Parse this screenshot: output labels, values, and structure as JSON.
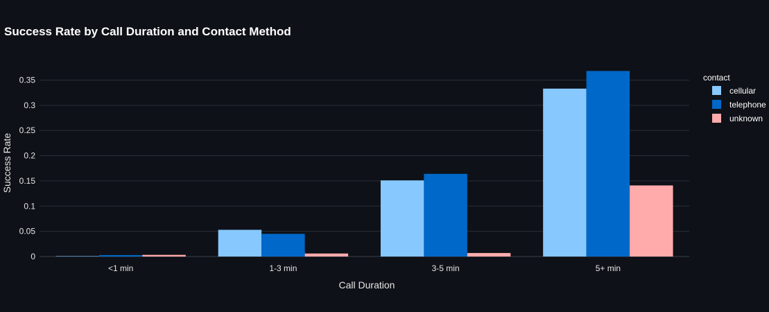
{
  "chart_data": {
    "type": "bar",
    "title": "Success Rate by Call Duration and Contact Method",
    "xlabel": "Call Duration",
    "ylabel": "Success Rate",
    "categories": [
      "<1 min",
      "1-3 min",
      "3-5 min",
      "5+ min"
    ],
    "series": [
      {
        "name": "cellular",
        "color": "#87c8ff",
        "values": [
          0.0008,
          0.053,
          0.151,
          0.333
        ]
      },
      {
        "name": "telephone",
        "color": "#0068c9",
        "values": [
          0.0028,
          0.045,
          0.164,
          0.368
        ]
      },
      {
        "name": "unknown",
        "color": "#ffabab",
        "values": [
          0.0033,
          0.006,
          0.007,
          0.141
        ]
      }
    ],
    "ylim": [
      0,
      0.385
    ],
    "yticks": [
      0,
      0.05,
      0.1,
      0.15,
      0.2,
      0.25,
      0.3,
      0.35
    ],
    "ytick_labels": [
      "0",
      "0.05",
      "0.1",
      "0.15",
      "0.2",
      "0.25",
      "0.3",
      "0.35"
    ],
    "grid": true,
    "legend": {
      "title": "contact",
      "position": "top-right"
    },
    "colors": {
      "background": "#0e1117",
      "grid": "#2a2f3a"
    }
  }
}
